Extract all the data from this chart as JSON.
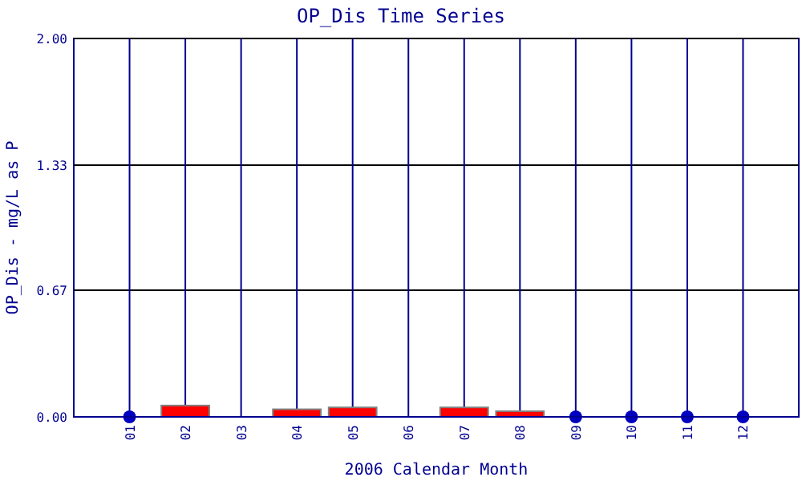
{
  "chart_data": {
    "type": "bar",
    "title": "OP_Dis Time Series",
    "xlabel": "2006 Calendar Month",
    "ylabel": "OP_Dis - mg/L as P",
    "categories": [
      "01",
      "02",
      "03",
      "04",
      "05",
      "06",
      "07",
      "08",
      "09",
      "10",
      "11",
      "12"
    ],
    "series": [
      {
        "color": "#ff0000",
        "values": [
          null,
          0.06,
          0,
          0.04,
          0.05,
          0,
          0.05,
          0.03,
          null,
          null,
          null,
          null
        ]
      },
      {
        "type": "scatter",
        "color": "#0000c0",
        "x": [
          "01",
          "09",
          "10",
          "11",
          "12"
        ],
        "values": [
          0,
          0,
          0,
          0,
          0
        ]
      }
    ],
    "ylim": [
      0,
      2
    ],
    "yticks": [
      {
        "value": 0,
        "label": "0.00"
      },
      {
        "value": 0.67,
        "label": "0.67"
      },
      {
        "value": 1.33,
        "label": "1.33"
      },
      {
        "value": 2,
        "label": "2.00"
      }
    ],
    "grid": true,
    "marker": "circle"
  }
}
